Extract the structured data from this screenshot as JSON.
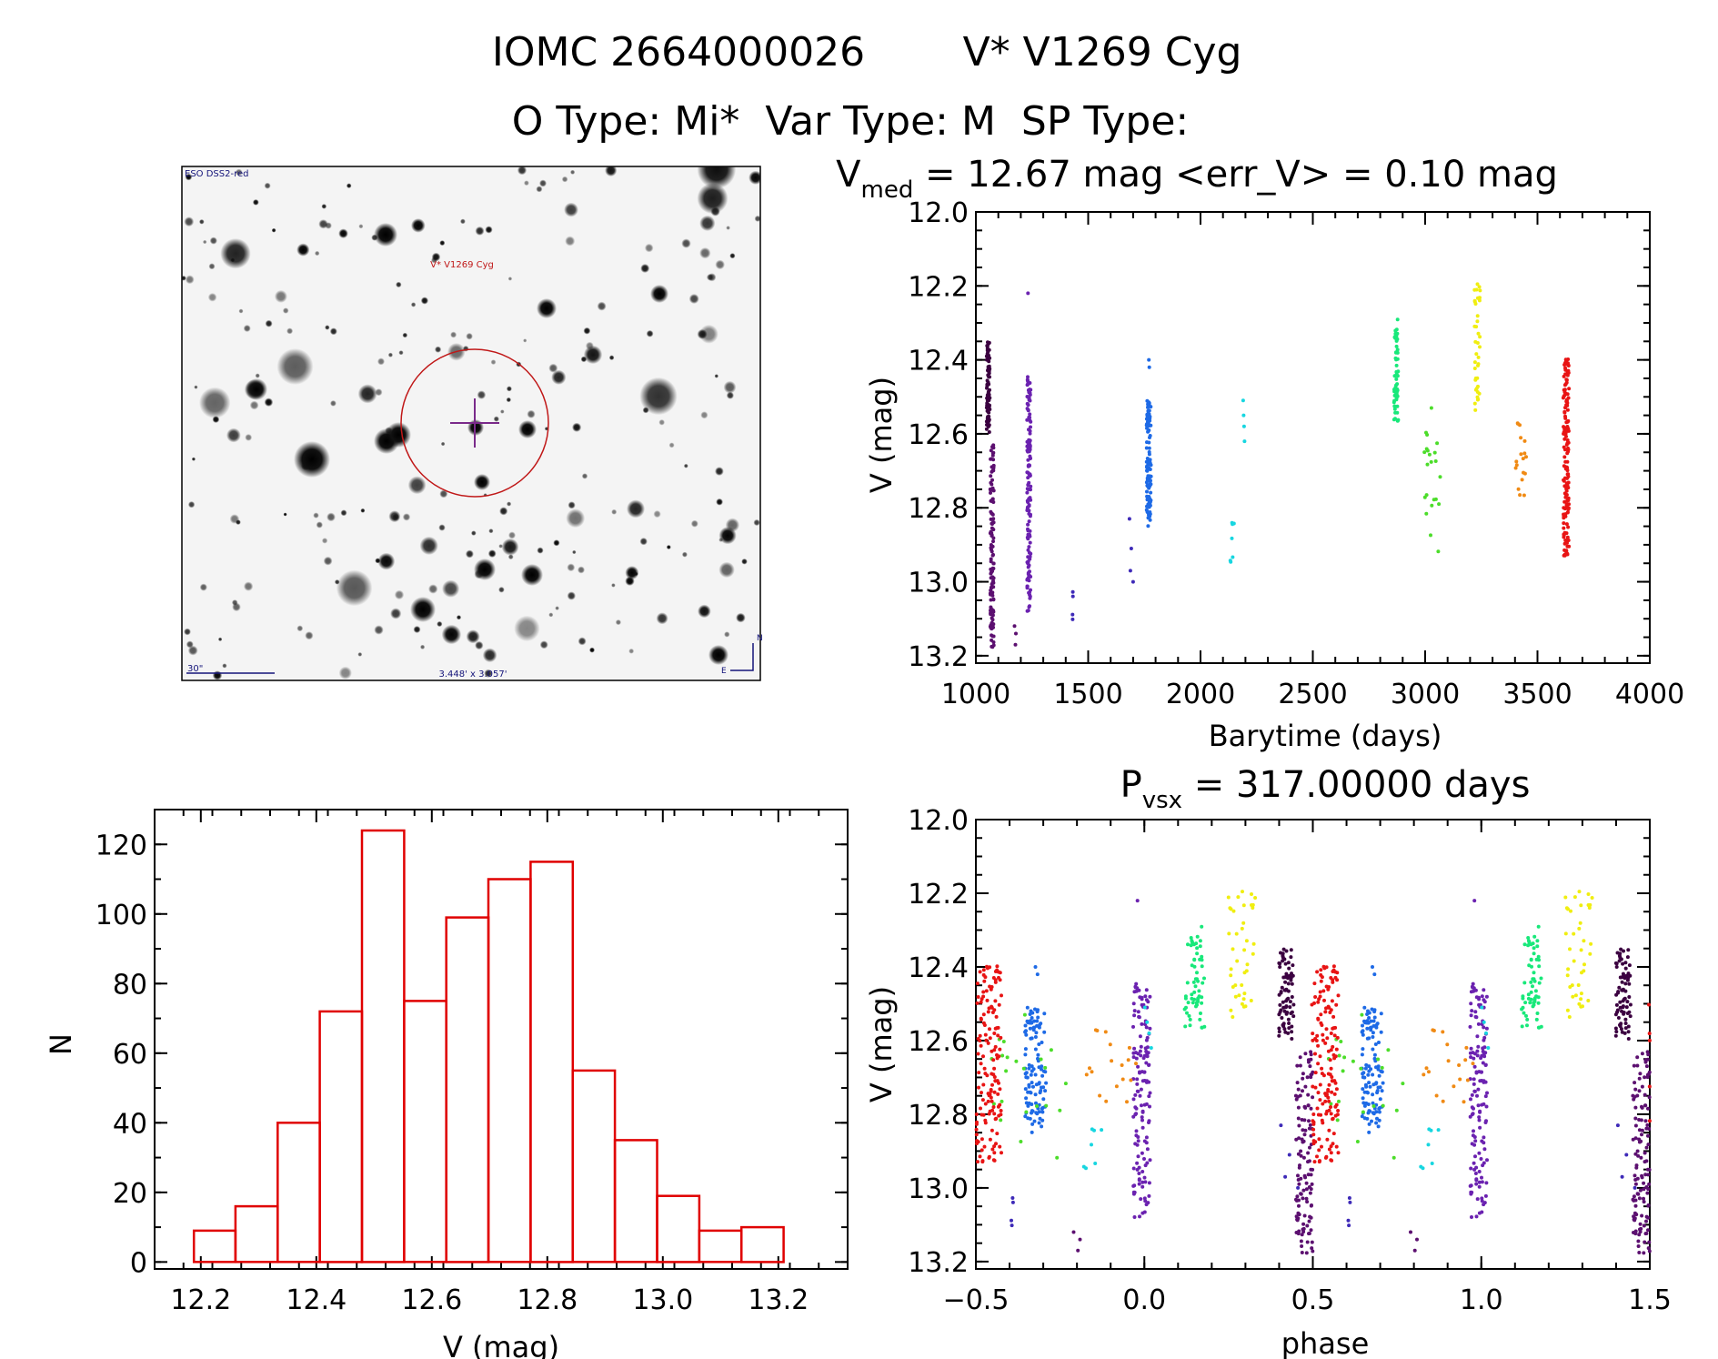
{
  "header": {
    "line1_left": "IOMC 2664000026",
    "line1_right": "V* V1269 Cyg",
    "line2": "O Type: Mi*  Var Type: M  SP Type:"
  },
  "finder": {
    "survey_label": "ESO DSS2-red",
    "target_label": "V* V1269 Cyg",
    "scale_label": "30\"",
    "size_label": "3.448' x 3.057'",
    "north_label": "N",
    "east_label": "E"
  },
  "colors": {
    "histogram": "#e00000",
    "palette": [
      "#3b0040",
      "#5c1070",
      "#6b22b0",
      "#3e2ab8",
      "#1e6ae6",
      "#17d6e0",
      "#18e87a",
      "#4cdd2a",
      "#f0ee10",
      "#f08a14",
      "#e81414"
    ]
  },
  "chart_data": [
    {
      "id": "lightcurve",
      "type": "scatter",
      "title_main": "V",
      "title_sub": "med",
      "title_rest": " = 12.67 mag <err_V> = 0.10 mag",
      "xlabel": "Barytime (days)",
      "ylabel": "V (mag)",
      "xlim": [
        1000,
        4000
      ],
      "ylim": [
        13.22,
        12.0
      ],
      "xticks": [
        1000,
        1500,
        2000,
        2500,
        3000,
        3500,
        4000
      ],
      "yticks": [
        12.0,
        12.2,
        12.4,
        12.6,
        12.8,
        13.0,
        13.2
      ],
      "series": [
        {
          "name": "s0",
          "x_range": [
            1048,
            1062
          ],
          "v_range": [
            12.35,
            12.6
          ],
          "n": 75,
          "isolated": []
        },
        {
          "name": "s1",
          "x_range": [
            1064,
            1080
          ],
          "v_range": [
            12.62,
            13.18
          ],
          "n": 120,
          "isolated": [
            [
              1172,
              13.12
            ],
            [
              1178,
              13.14
            ],
            [
              1176,
              13.17
            ]
          ]
        },
        {
          "name": "s2",
          "x_range": [
            1228,
            1244
          ],
          "v_range": [
            12.44,
            13.08
          ],
          "n": 140,
          "isolated": [
            [
              1232,
              12.22
            ]
          ]
        },
        {
          "name": "s3",
          "x_range": [
            1430,
            1440
          ],
          "v_range": [
            13.0,
            13.16
          ],
          "n": 4,
          "isolated": [
            [
              1684,
              12.83
            ],
            [
              1692,
              12.91
            ],
            [
              1700,
              13.0
            ],
            [
              1688,
              12.97
            ]
          ]
        },
        {
          "name": "s4",
          "x_range": [
            1760,
            1780
          ],
          "v_range": [
            12.51,
            12.85
          ],
          "n": 110,
          "isolated": [
            [
              1770,
              12.4
            ],
            [
              1772,
              12.42
            ]
          ]
        },
        {
          "name": "s5",
          "x_range": [
            2130,
            2150
          ],
          "v_range": [
            12.83,
            12.95
          ],
          "n": 7,
          "isolated": [
            [
              2190,
              12.51
            ],
            [
              2192,
              12.55
            ],
            [
              2194,
              12.58
            ],
            [
              2196,
              12.62
            ]
          ]
        },
        {
          "name": "s6",
          "x_range": [
            2860,
            2880
          ],
          "v_range": [
            12.29,
            12.57
          ],
          "n": 60,
          "isolated": []
        },
        {
          "name": "s7",
          "x_range": [
            2990,
            3070
          ],
          "v_range": [
            12.51,
            12.93
          ],
          "n": 22,
          "isolated": []
        },
        {
          "name": "s8",
          "x_range": [
            3218,
            3245
          ],
          "v_range": [
            12.19,
            12.54
          ],
          "n": 40,
          "isolated": []
        },
        {
          "name": "s9",
          "x_range": [
            3400,
            3450
          ],
          "v_range": [
            12.57,
            12.77
          ],
          "n": 18,
          "isolated": []
        },
        {
          "name": "s10",
          "x_range": [
            3615,
            3640
          ],
          "v_range": [
            12.38,
            12.93
          ],
          "n": 150,
          "isolated": []
        }
      ]
    },
    {
      "id": "histogram",
      "type": "bar",
      "xlabel": "V (mag)",
      "ylabel": "N",
      "xlim": [
        12.12,
        13.32
      ],
      "ylim": [
        -2,
        130
      ],
      "xticks": [
        12.2,
        12.4,
        12.6,
        12.8,
        13.0,
        13.2
      ],
      "yticks": [
        0,
        20,
        40,
        60,
        80,
        100,
        120
      ],
      "bin_edges": [
        12.188,
        12.26,
        12.333,
        12.406,
        12.479,
        12.552,
        12.625,
        12.698,
        12.771,
        12.844,
        12.917,
        12.99,
        13.063,
        13.136,
        13.209
      ],
      "values": [
        9,
        16,
        40,
        72,
        124,
        75,
        99,
        110,
        115,
        55,
        35,
        19,
        9,
        10
      ]
    },
    {
      "id": "phased",
      "type": "scatter",
      "title_main": "P",
      "title_sub": "vsx",
      "title_rest": " = 317.00000 days",
      "xlabel": "phase",
      "ylabel": "V (mag)",
      "xlim": [
        -0.5,
        1.5
      ],
      "ylim": [
        13.22,
        12.0
      ],
      "xticks": [
        -0.5,
        0.0,
        0.5,
        1.0,
        1.5
      ],
      "xtick_labels": [
        "−0.5",
        "0.0",
        "0.5",
        "1.0",
        "1.5"
      ],
      "yticks": [
        12.0,
        12.2,
        12.4,
        12.6,
        12.8,
        13.0,
        13.2
      ],
      "period_days": 317.0,
      "t0_days": 1080
    }
  ]
}
